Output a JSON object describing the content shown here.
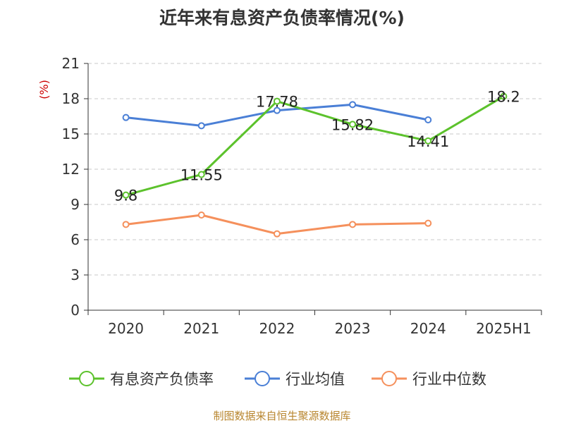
{
  "title": "近年来有息资产负债率情况(%)",
  "source": "制图数据来自恒生聚源数据库",
  "chart_data": {
    "type": "line",
    "title": "近年来有息资产负债率情况(%)",
    "ylabel": "(%)",
    "categories": [
      "2020",
      "2021",
      "2022",
      "2023",
      "2024",
      "2025H1"
    ],
    "ylim": [
      0,
      21
    ],
    "yticks": [
      0,
      3,
      6,
      9,
      12,
      15,
      18,
      21
    ],
    "grid": true,
    "legend_position": "bottom",
    "series": [
      {
        "name": "有息资产负债率",
        "color": "#5cc22c",
        "values": [
          9.8,
          11.55,
          17.78,
          15.82,
          14.41,
          18.2
        ],
        "labels": [
          "9.8",
          "11.55",
          "17.78",
          "15.82",
          "14.41",
          "18.2"
        ]
      },
      {
        "name": "行业均值",
        "color": "#4a7fd6",
        "values": [
          16.4,
          15.7,
          17.0,
          17.5,
          16.2,
          null
        ]
      },
      {
        "name": "行业中位数",
        "color": "#f5905c",
        "values": [
          7.3,
          8.1,
          6.5,
          7.3,
          7.4,
          null
        ]
      }
    ]
  }
}
